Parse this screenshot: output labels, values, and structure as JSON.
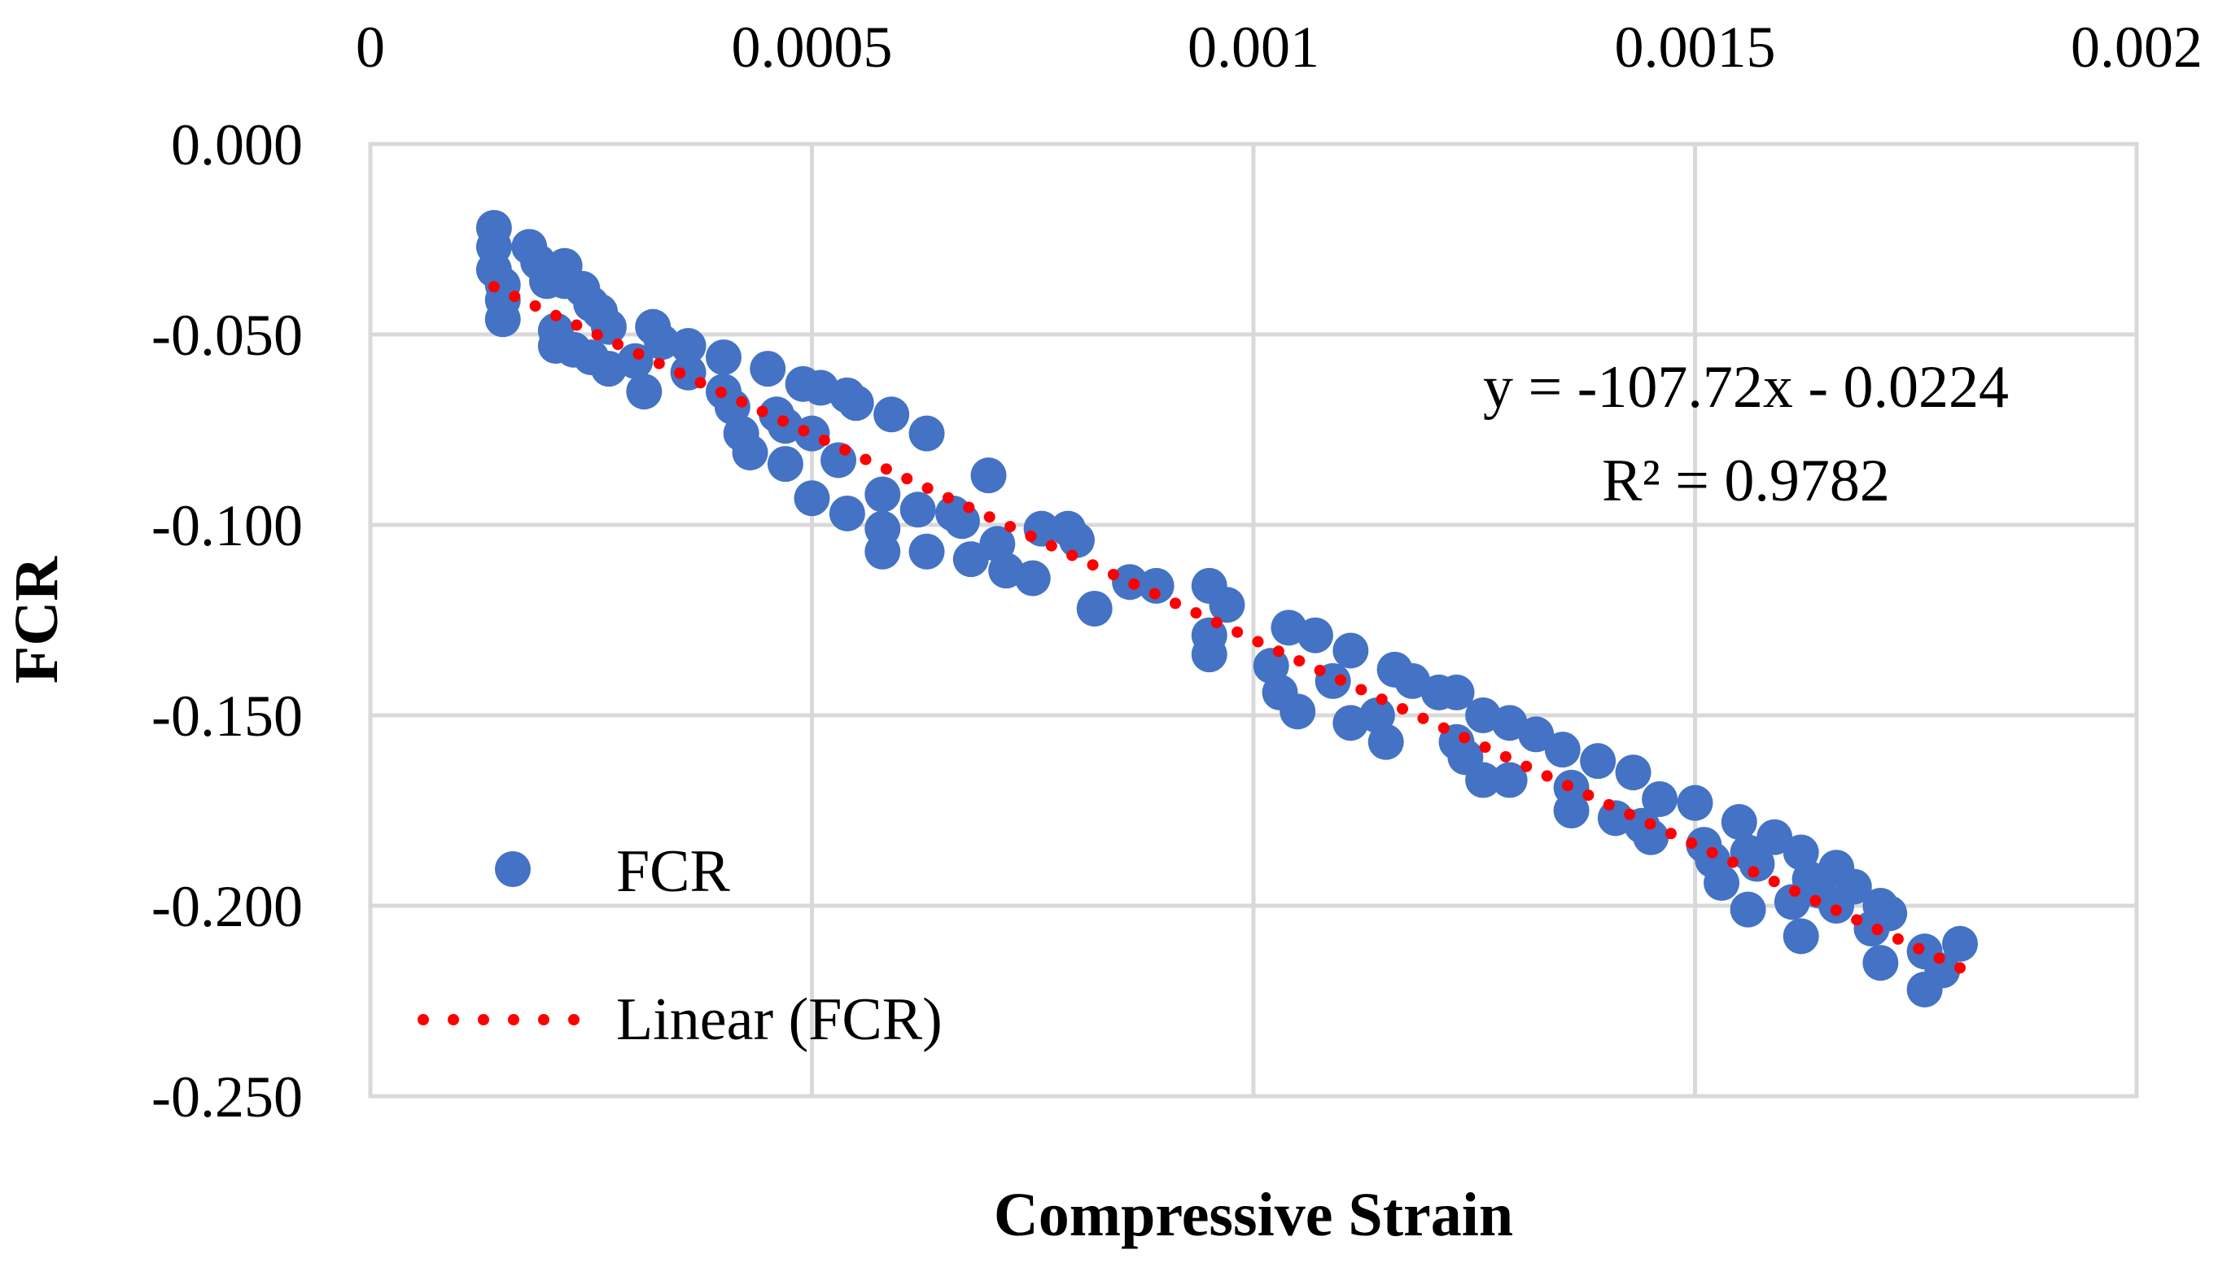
{
  "chart_data": {
    "type": "scatter",
    "title": "",
    "xlabel": "Compressive Strain",
    "ylabel": "FCR",
    "xlim": [
      0,
      0.002
    ],
    "ylim": [
      -0.25,
      0
    ],
    "x_ticks": [
      "0",
      "0.0005",
      "0.001",
      "0.0015",
      "0.002"
    ],
    "y_ticks": [
      "0.000",
      "-0.050",
      "-0.100",
      "-0.150",
      "-0.200",
      "-0.250"
    ],
    "x_axis_position": "top",
    "grid": true,
    "legend": {
      "position": "bottom-left",
      "entries": [
        "FCR",
        "Linear (FCR)"
      ]
    },
    "colors": {
      "points": "#4472C4",
      "trendline": "#FF0000",
      "grid": "#D9D9D9"
    },
    "annotations": {
      "equation": "y = -107.72x - 0.0224",
      "r_squared": "R² = 0.9782"
    },
    "trendline": {
      "name": "Linear (FCR)",
      "slope": -107.72,
      "intercept": -0.0224,
      "x_range": [
        0.00014,
        0.0018
      ]
    },
    "series": [
      {
        "name": "FCR",
        "points": [
          [
            0.00014,
            -0.022
          ],
          [
            0.00014,
            -0.027
          ],
          [
            0.00014,
            -0.033
          ],
          [
            0.00015,
            -0.037
          ],
          [
            0.00015,
            -0.041
          ],
          [
            0.00015,
            -0.046
          ],
          [
            0.00018,
            -0.027
          ],
          [
            0.00019,
            -0.031
          ],
          [
            0.0002,
            -0.036
          ],
          [
            0.00021,
            -0.049
          ],
          [
            0.00021,
            -0.053
          ],
          [
            0.00022,
            -0.032
          ],
          [
            0.00022,
            -0.036
          ],
          [
            0.00023,
            -0.054
          ],
          [
            0.00024,
            -0.038
          ],
          [
            0.00025,
            -0.042
          ],
          [
            0.00025,
            -0.056
          ],
          [
            0.00026,
            -0.044
          ],
          [
            0.00027,
            -0.048
          ],
          [
            0.00027,
            -0.059
          ],
          [
            0.0003,
            -0.057
          ],
          [
            0.00031,
            -0.065
          ],
          [
            0.00032,
            -0.048
          ],
          [
            0.00033,
            -0.052
          ],
          [
            0.00036,
            -0.053
          ],
          [
            0.00036,
            -0.06
          ],
          [
            0.0004,
            -0.056
          ],
          [
            0.0004,
            -0.065
          ],
          [
            0.00041,
            -0.069
          ],
          [
            0.00042,
            -0.076
          ],
          [
            0.00043,
            -0.081
          ],
          [
            0.00045,
            -0.059
          ],
          [
            0.00046,
            -0.071
          ],
          [
            0.00047,
            -0.074
          ],
          [
            0.00047,
            -0.084
          ],
          [
            0.00049,
            -0.063
          ],
          [
            0.0005,
            -0.076
          ],
          [
            0.0005,
            -0.093
          ],
          [
            0.00051,
            -0.064
          ],
          [
            0.00053,
            -0.083
          ],
          [
            0.00054,
            -0.066
          ],
          [
            0.00054,
            -0.097
          ],
          [
            0.00055,
            -0.068
          ],
          [
            0.00058,
            -0.092
          ],
          [
            0.00058,
            -0.101
          ],
          [
            0.00058,
            -0.107
          ],
          [
            0.00059,
            -0.071
          ],
          [
            0.00062,
            -0.096
          ],
          [
            0.00063,
            -0.076
          ],
          [
            0.00063,
            -0.107
          ],
          [
            0.00066,
            -0.097
          ],
          [
            0.00067,
            -0.099
          ],
          [
            0.00068,
            -0.109
          ],
          [
            0.0007,
            -0.087
          ],
          [
            0.00071,
            -0.105
          ],
          [
            0.00072,
            -0.112
          ],
          [
            0.00075,
            -0.114
          ],
          [
            0.00076,
            -0.101
          ],
          [
            0.00079,
            -0.101
          ],
          [
            0.0008,
            -0.104
          ],
          [
            0.00082,
            -0.122
          ],
          [
            0.00086,
            -0.115
          ],
          [
            0.00089,
            -0.116
          ],
          [
            0.00095,
            -0.116
          ],
          [
            0.00095,
            -0.129
          ],
          [
            0.00095,
            -0.134
          ],
          [
            0.00097,
            -0.121
          ],
          [
            0.00102,
            -0.137
          ],
          [
            0.00103,
            -0.144
          ],
          [
            0.00104,
            -0.127
          ],
          [
            0.00105,
            -0.149
          ],
          [
            0.00107,
            -0.129
          ],
          [
            0.00109,
            -0.141
          ],
          [
            0.00111,
            -0.133
          ],
          [
            0.00111,
            -0.152
          ],
          [
            0.00114,
            -0.15
          ],
          [
            0.00115,
            -0.157
          ],
          [
            0.00116,
            -0.138
          ],
          [
            0.00118,
            -0.141
          ],
          [
            0.00121,
            -0.144
          ],
          [
            0.00123,
            -0.144
          ],
          [
            0.00123,
            -0.157
          ],
          [
            0.00124,
            -0.161
          ],
          [
            0.00126,
            -0.15
          ],
          [
            0.00126,
            -0.167
          ],
          [
            0.00129,
            -0.152
          ],
          [
            0.00129,
            -0.167
          ],
          [
            0.00132,
            -0.155
          ],
          [
            0.00135,
            -0.159
          ],
          [
            0.00136,
            -0.169
          ],
          [
            0.00136,
            -0.175
          ],
          [
            0.00139,
            -0.162
          ],
          [
            0.00141,
            -0.177
          ],
          [
            0.00143,
            -0.165
          ],
          [
            0.00144,
            -0.179
          ],
          [
            0.00145,
            -0.182
          ],
          [
            0.00146,
            -0.172
          ],
          [
            0.0015,
            -0.173
          ],
          [
            0.00151,
            -0.184
          ],
          [
            0.00152,
            -0.188
          ],
          [
            0.00153,
            -0.194
          ],
          [
            0.00155,
            -0.178
          ],
          [
            0.00156,
            -0.186
          ],
          [
            0.00156,
            -0.201
          ],
          [
            0.00157,
            -0.189
          ],
          [
            0.00159,
            -0.182
          ],
          [
            0.00161,
            -0.199
          ],
          [
            0.00162,
            -0.186
          ],
          [
            0.00162,
            -0.208
          ],
          [
            0.00163,
            -0.193
          ],
          [
            0.00164,
            -0.196
          ],
          [
            0.00166,
            -0.19
          ],
          [
            0.00166,
            -0.2
          ],
          [
            0.00168,
            -0.195
          ],
          [
            0.0017,
            -0.206
          ],
          [
            0.00171,
            -0.2
          ],
          [
            0.00171,
            -0.215
          ],
          [
            0.00172,
            -0.202
          ],
          [
            0.00176,
            -0.212
          ],
          [
            0.00176,
            -0.222
          ],
          [
            0.00178,
            -0.217
          ],
          [
            0.0018,
            -0.21
          ]
        ]
      }
    ]
  }
}
